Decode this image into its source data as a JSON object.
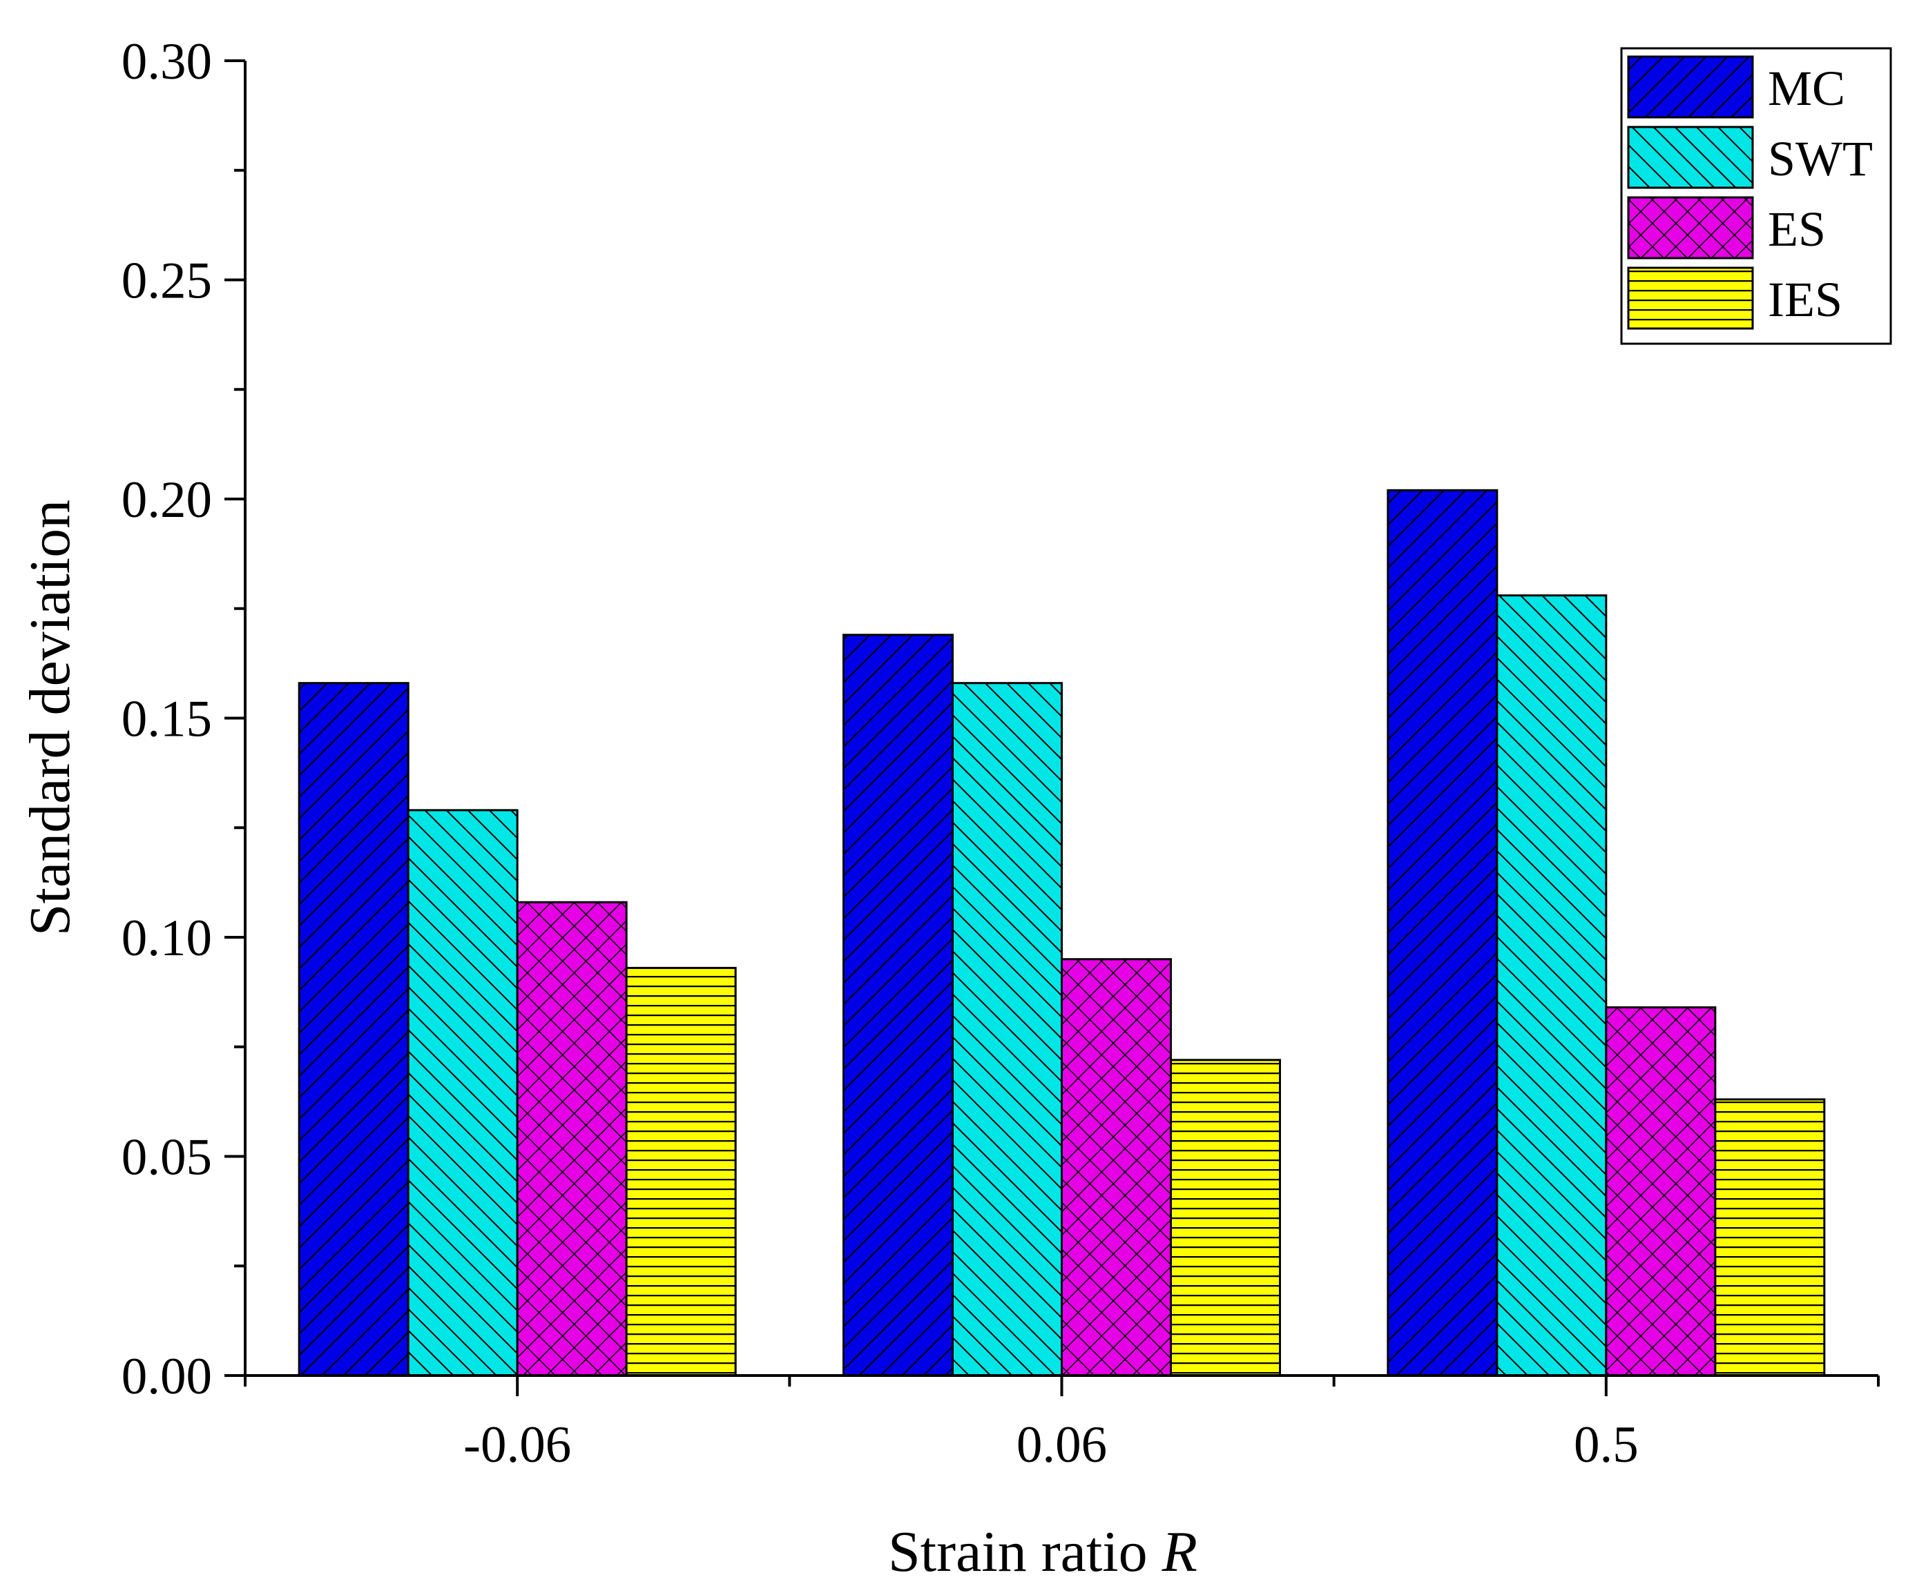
{
  "chart_data": {
    "type": "bar",
    "title": "",
    "xlabel": "Strain ratio",
    "xlabel_var": "R",
    "ylabel": "Standard deviation",
    "categories": [
      "-0.06",
      "0.06",
      "0.5"
    ],
    "ylim": [
      0,
      0.3
    ],
    "yticks": [
      "0.00",
      "0.05",
      "0.10",
      "0.15",
      "0.20",
      "0.25",
      "0.30"
    ],
    "legend_position": "top-right",
    "series": [
      {
        "name": "MC",
        "color": "#0000e6",
        "pattern": "hatch-forward",
        "values": [
          0.158,
          0.169,
          0.202
        ]
      },
      {
        "name": "SWT",
        "color": "#00e6e6",
        "pattern": "hatch-back",
        "values": [
          0.129,
          0.158,
          0.178
        ]
      },
      {
        "name": "ES",
        "color": "#e600e6",
        "pattern": "crosshatch",
        "values": [
          0.108,
          0.095,
          0.084
        ]
      },
      {
        "name": "IES",
        "color": "#ffff00",
        "pattern": "horizontal",
        "values": [
          0.093,
          0.072,
          0.063
        ]
      }
    ]
  }
}
